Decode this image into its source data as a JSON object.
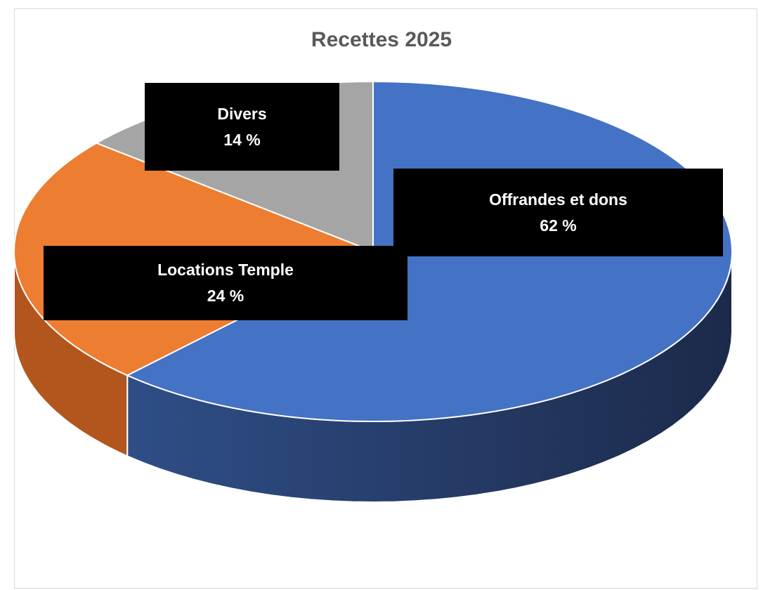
{
  "chart_data": {
    "type": "pie",
    "title": "Recettes 2025",
    "slices": [
      {
        "name": "Offrandes et dons",
        "value": 62,
        "label": "62 %",
        "color": "#4472C4",
        "side_color": "#2F4E87"
      },
      {
        "name": "Locations Temple",
        "value": 24,
        "label": "24 %",
        "color": "#ED7D31",
        "side_color": "#B3561E"
      },
      {
        "name": "Divers",
        "value": 14,
        "label": "14 %",
        "color": "#A5A5A5",
        "side_color": "#7A7A7A"
      }
    ],
    "legend": "none",
    "style": "3d"
  }
}
